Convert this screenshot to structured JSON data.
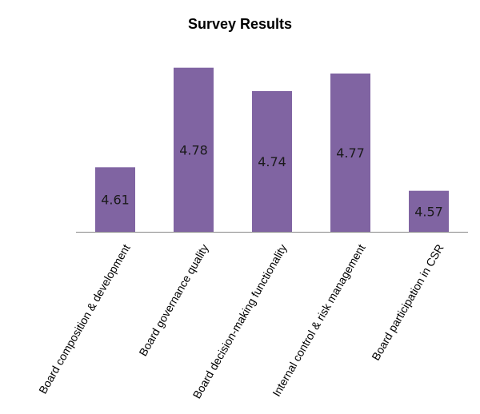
{
  "chart_data": {
    "type": "bar",
    "title": "Survey Results",
    "categories": [
      "Board composition & development",
      "Board governance quality",
      "Board decision-making functionality",
      "Internal control & risk management",
      "Board participation in CSR"
    ],
    "values": [
      4.61,
      4.78,
      4.74,
      4.77,
      4.57
    ],
    "value_labels": [
      "4.61",
      "4.78",
      "4.74",
      "4.77",
      "4.57"
    ],
    "xlabel": "",
    "ylabel": "",
    "ylim": [
      4.5,
      4.8
    ],
    "grid": false,
    "legend": "none",
    "bar_color": "#8064a2",
    "axis_color": "#868686"
  }
}
